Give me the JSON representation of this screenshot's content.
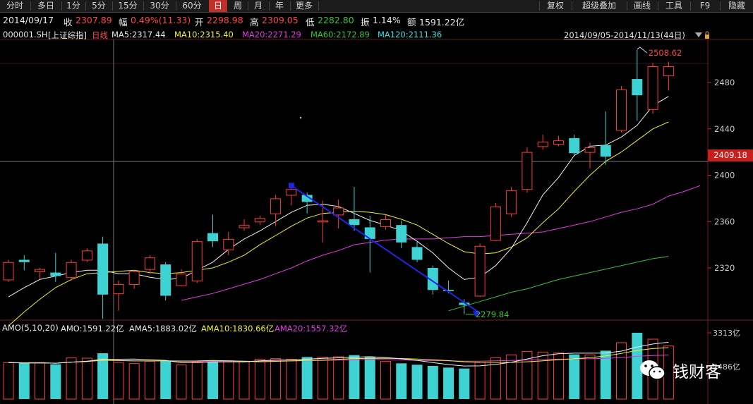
{
  "toolbar": {
    "left_tabs": [
      "分时",
      "多日",
      "1分",
      "5分",
      "15分",
      "30分",
      "60分",
      "日",
      "周",
      "月",
      "年",
      "更多"
    ],
    "active_tab": "日",
    "right_items": [
      "复权",
      "超级叠加",
      "画线",
      "工具",
      "F9",
      "隐藏"
    ]
  },
  "info": {
    "date": "2014/09/17",
    "close_label": "收",
    "close_value": "2307.89",
    "change_label": "幅",
    "change_value": "0.49%(11.33)",
    "open_label": "开",
    "open_value": "2298.98",
    "high_label": "高",
    "high_value": "2309.05",
    "low_label": "低",
    "low_value": "2282.80",
    "amp_label": "振",
    "amp_value": "1.14%",
    "amount_label": "额",
    "amount_value": "1591.22亿"
  },
  "ma_bar": {
    "code": "000001.SH",
    "name": "[上证综指]",
    "period": "日线",
    "ma5": "MA5:2317.44",
    "ma10": "MA10:2315.40",
    "ma20": "MA20:2271.29",
    "ma60": "MA60:2172.89",
    "ma120": "MA120:2111.36",
    "range": "2014/09/05-2014/11/13(44日)"
  },
  "current_price_tag": "2409.18",
  "amo_bar": {
    "title": "AMO(5,10,20)",
    "amo": "AMO:1591.22亿",
    "ama5": "AMA5:1883.02亿",
    "ama10": "AMA10:1830.66亿",
    "ama20": "AMA20:1557.32亿"
  },
  "watermark": {
    "text": "钱财客",
    "icon": "wechat-icon"
  },
  "colors": {
    "up": "#ff3b3b",
    "down": "#3fd2d2",
    "ma5": "#f0f0f0",
    "ma10": "#f2f22a",
    "ma20": "#e23ae2",
    "ma60": "#36c536",
    "trend_arrow": "#2323e6",
    "price_tag_bg": "#c71e1e"
  },
  "chart_data": {
    "type": "candlestick",
    "y_ticks": [
      2320,
      2360,
      2400,
      2440,
      2480
    ],
    "ylim": [
      2290,
      2518
    ],
    "volume_ticks": [
      "3313亿",
      "2486亿"
    ],
    "high_annotation": "2508.62",
    "low_annotation": "2279.84",
    "candles": [
      {
        "o": 2310,
        "c": 2325,
        "h": 2327,
        "l": 2308
      },
      {
        "o": 2327,
        "c": 2325,
        "h": 2331,
        "l": 2318
      },
      {
        "o": 2317,
        "c": 2319,
        "h": 2320,
        "l": 2310
      },
      {
        "o": 2316,
        "c": 2313,
        "h": 2333,
        "l": 2308
      },
      {
        "o": 2312,
        "c": 2325,
        "h": 2327,
        "l": 2309
      },
      {
        "o": 2327,
        "c": 2335,
        "h": 2337,
        "l": 2325
      },
      {
        "o": 2341,
        "c": 2297,
        "h": 2347,
        "l": 2276
      },
      {
        "o": 2298,
        "c": 2306,
        "h": 2309,
        "l": 2283
      },
      {
        "o": 2306,
        "c": 2317,
        "h": 2318,
        "l": 2302
      },
      {
        "o": 2319,
        "c": 2329,
        "h": 2331,
        "l": 2315
      },
      {
        "o": 2323,
        "c": 2296,
        "h": 2325,
        "l": 2292
      },
      {
        "o": 2305,
        "c": 2315,
        "h": 2319,
        "l": 2304
      },
      {
        "o": 2309,
        "c": 2343,
        "h": 2345,
        "l": 2307
      },
      {
        "o": 2350,
        "c": 2343,
        "h": 2366,
        "l": 2338
      },
      {
        "o": 2336,
        "c": 2345,
        "h": 2351,
        "l": 2331
      },
      {
        "o": 2355,
        "c": 2357,
        "h": 2362,
        "l": 2352
      },
      {
        "o": 2360,
        "c": 2363,
        "h": 2365,
        "l": 2357
      },
      {
        "o": 2367,
        "c": 2380,
        "h": 2383,
        "l": 2356
      },
      {
        "o": 2383,
        "c": 2388,
        "h": 2391,
        "l": 2374
      },
      {
        "o": 2383,
        "c": 2377,
        "h": 2385,
        "l": 2367
      },
      {
        "o": 2360,
        "c": 2361,
        "h": 2378,
        "l": 2342
      },
      {
        "o": 2366,
        "c": 2372,
        "h": 2379,
        "l": 2354
      },
      {
        "o": 2362,
        "c": 2357,
        "h": 2390,
        "l": 2352
      },
      {
        "o": 2355,
        "c": 2345,
        "h": 2365,
        "l": 2316
      },
      {
        "o": 2356,
        "c": 2362,
        "h": 2366,
        "l": 2353
      },
      {
        "o": 2357,
        "c": 2342,
        "h": 2361,
        "l": 2337
      },
      {
        "o": 2338,
        "c": 2327,
        "h": 2343,
        "l": 2325
      },
      {
        "o": 2320,
        "c": 2301,
        "h": 2322,
        "l": 2297
      },
      {
        "o": 2301,
        "c": 2300,
        "h": 2309,
        "l": 2298
      },
      {
        "o": 2290,
        "c": 2288,
        "h": 2293,
        "l": 2280
      },
      {
        "o": 2296,
        "c": 2339,
        "h": 2341,
        "l": 2295
      },
      {
        "o": 2344,
        "c": 2373,
        "h": 2376,
        "l": 2343
      },
      {
        "o": 2367,
        "c": 2387,
        "h": 2390,
        "l": 2364
      },
      {
        "o": 2388,
        "c": 2420,
        "h": 2424,
        "l": 2385
      },
      {
        "o": 2425,
        "c": 2429,
        "h": 2435,
        "l": 2422
      },
      {
        "o": 2427,
        "c": 2430,
        "h": 2434,
        "l": 2425
      },
      {
        "o": 2432,
        "c": 2419,
        "h": 2435,
        "l": 2417
      },
      {
        "o": 2420,
        "c": 2424,
        "h": 2428,
        "l": 2406
      },
      {
        "o": 2426,
        "c": 2416,
        "h": 2455,
        "l": 2409
      },
      {
        "o": 2439,
        "c": 2474,
        "h": 2477,
        "l": 2437
      },
      {
        "o": 2483,
        "c": 2469,
        "h": 2508,
        "l": 2447
      },
      {
        "o": 2457,
        "c": 2494,
        "h": 2497,
        "l": 2453
      },
      {
        "o": 2486,
        "c": 2494,
        "h": 2498,
        "l": 2473
      }
    ],
    "ma5": [
      2295,
      2303,
      2310,
      2313,
      2316,
      2318,
      2318,
      2315,
      2315,
      2312,
      2310,
      2311,
      2318,
      2325,
      2336,
      2345,
      2352,
      2360,
      2368,
      2374,
      2375,
      2373,
      2367,
      2361,
      2357,
      2352,
      2343,
      2333,
      2320,
      2310,
      2312,
      2322,
      2337,
      2359,
      2383,
      2398,
      2417,
      2425,
      2426,
      2433,
      2443,
      2460,
      2468
    ],
    "ma10": [
      2270,
      2282,
      2293,
      2303,
      2310,
      2315,
      2316,
      2317,
      2318,
      2316,
      2315,
      2316,
      2318,
      2320,
      2325,
      2331,
      2340,
      2348,
      2356,
      2363,
      2367,
      2368,
      2369,
      2368,
      2366,
      2362,
      2357,
      2349,
      2341,
      2334,
      2332,
      2333,
      2338,
      2346,
      2359,
      2371,
      2386,
      2400,
      2412,
      2420,
      2430,
      2440,
      2446
    ],
    "ma20_start": 11,
    "ma20": [
      2292,
      2295,
      2298,
      2302,
      2306,
      2310,
      2315,
      2320,
      2326,
      2331,
      2335,
      2340,
      2342,
      2344,
      2345,
      2345,
      2345,
      2346,
      2347,
      2347,
      2348,
      2349,
      2350,
      2351,
      2354,
      2357,
      2360,
      2364,
      2368,
      2371,
      2375,
      2382,
      2386,
      2391
    ],
    "ma60_start": 28,
    "ma60": [
      2283,
      2287,
      2291,
      2295,
      2299,
      2302,
      2306,
      2310,
      2313,
      2316,
      2319,
      2322,
      2325,
      2328,
      2330
    ]
  },
  "volume_values": [
    1550,
    1530,
    1550,
    1480,
    1750,
    1740,
    1950,
    1560,
    1510,
    1610,
    1610,
    1450,
    1580,
    1640,
    1630,
    1600,
    1690,
    1720,
    1690,
    1790,
    1780,
    1800,
    1870,
    1780,
    1600,
    1520,
    1460,
    1410,
    1340,
    1300,
    1560,
    1760,
    1880,
    2030,
    2000,
    1960,
    1900,
    1880,
    2060,
    2400,
    2820,
    2550,
    2260
  ]
}
